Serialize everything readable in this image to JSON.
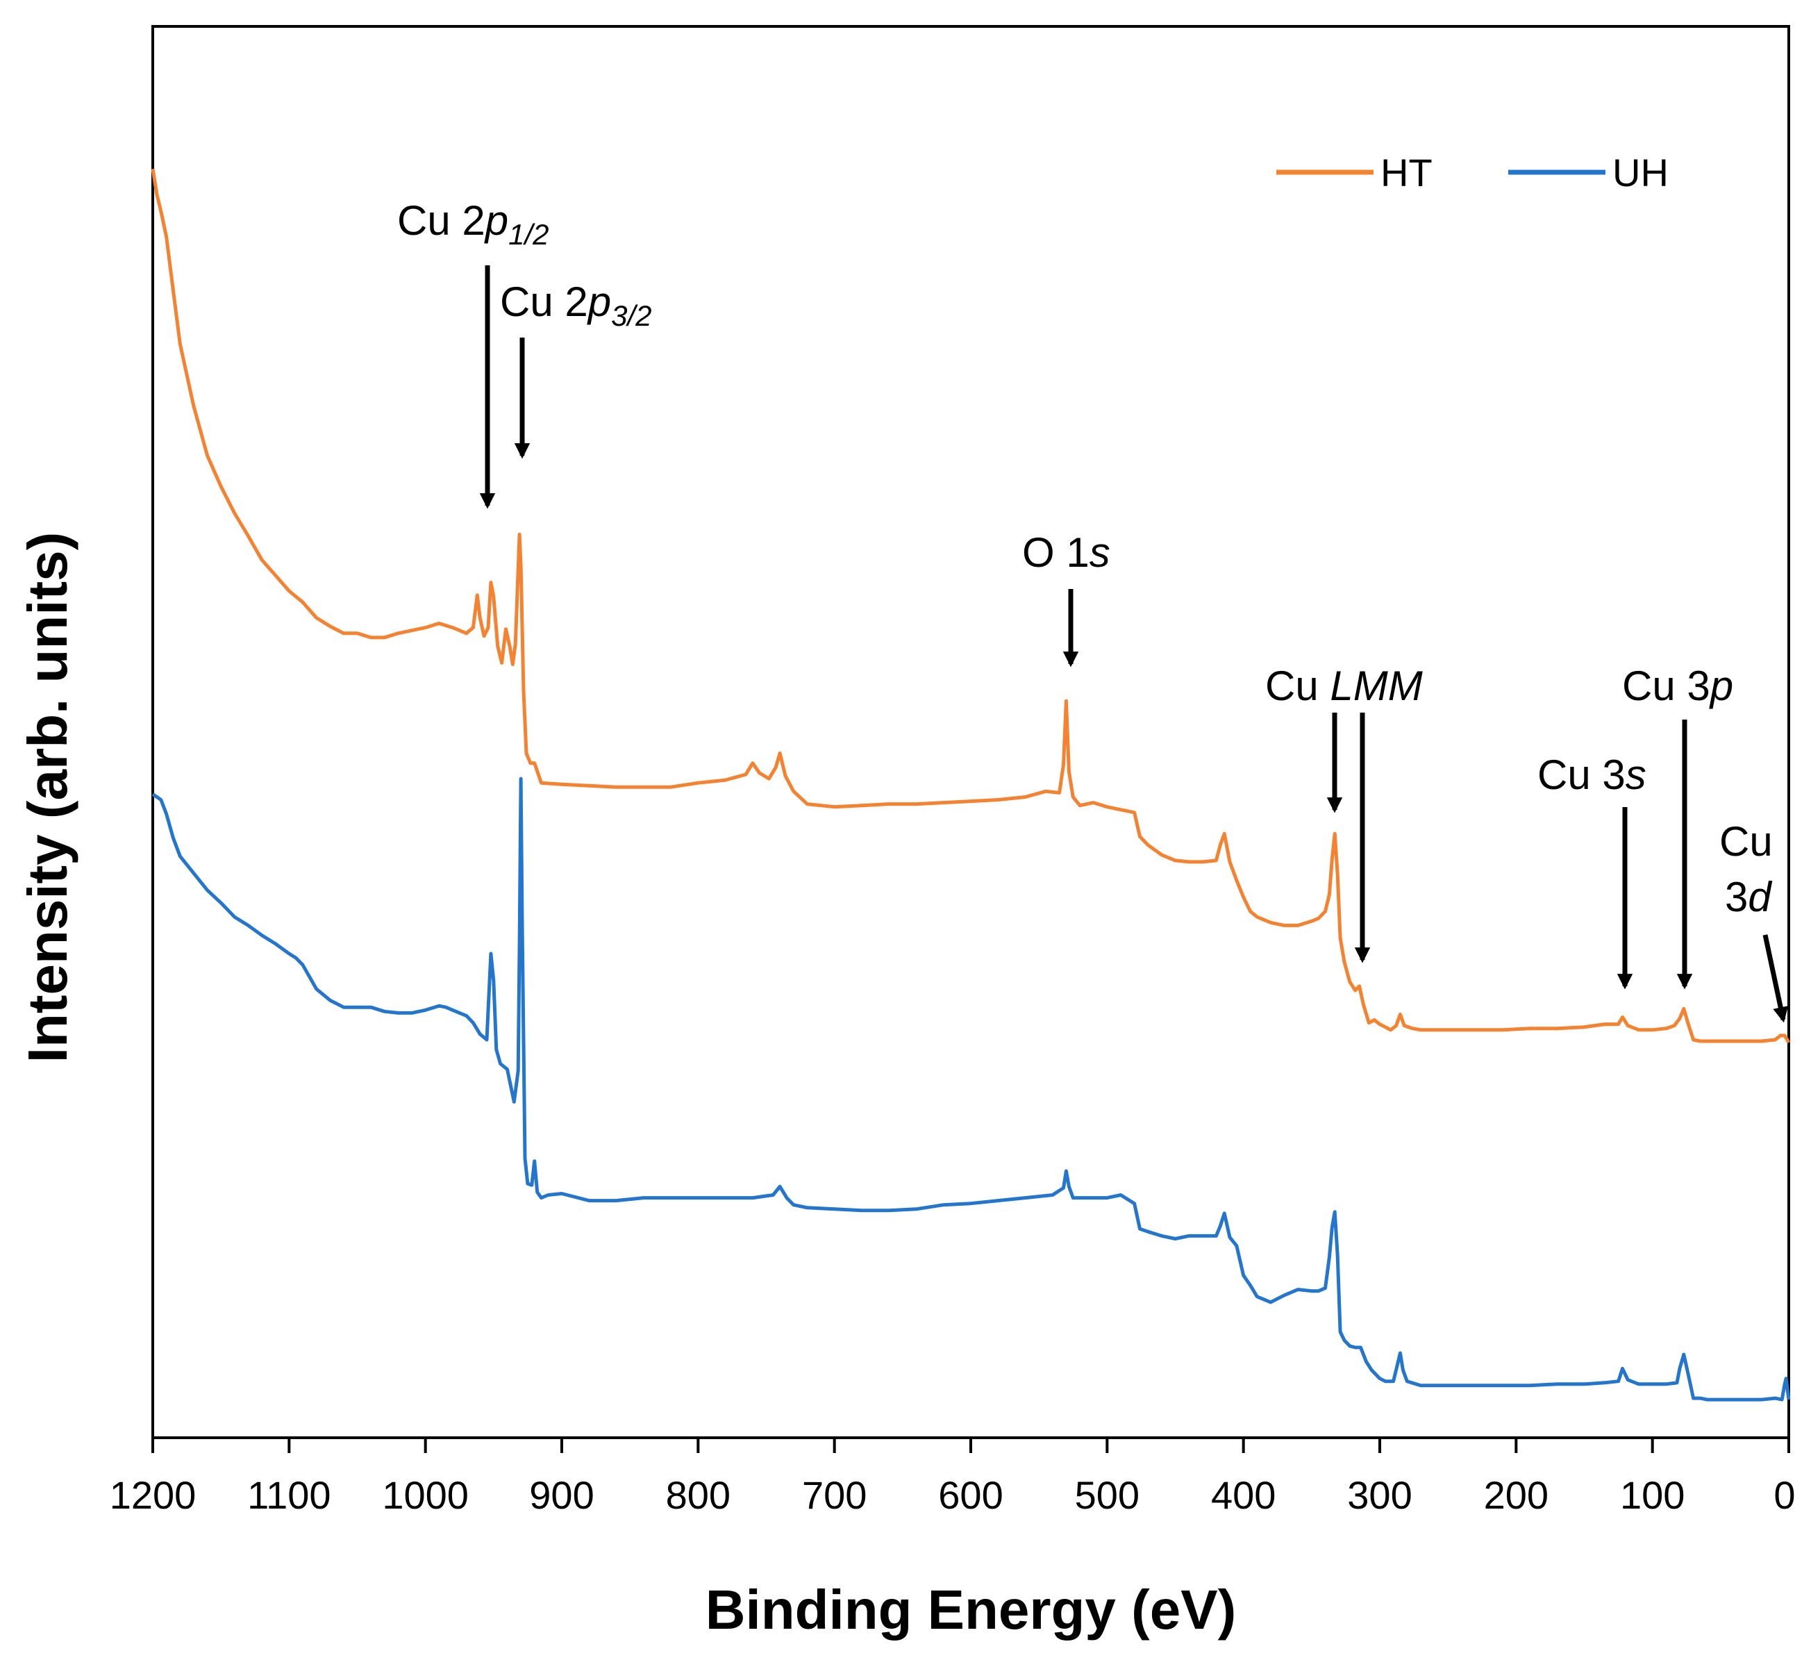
{
  "chart_data": {
    "type": "line",
    "title": "",
    "xlabel": "Binding Energy (eV)",
    "ylabel": "Intensity (arb. units)",
    "xlim": [
      1200,
      0
    ],
    "x_reversed": true,
    "ylim": [
      0,
      100
    ],
    "ytick_labels": false,
    "grid": false,
    "xticks": [
      "1200",
      "1100",
      "1000",
      "900",
      "800",
      "700",
      "600",
      "500",
      "400",
      "300",
      "200",
      "100",
      "0"
    ],
    "legend": {
      "placement": "top-right",
      "entries": [
        "HT",
        "UH"
      ]
    },
    "colors": {
      "HT": "#f58231",
      "UH": "#2375cd"
    },
    "series": [
      {
        "name": "HT",
        "points": [
          [
            1200,
            89.9
          ],
          [
            1197,
            88.1
          ],
          [
            1194,
            86.9
          ],
          [
            1190,
            85.1
          ],
          [
            1185,
            81.3
          ],
          [
            1180,
            77.5
          ],
          [
            1170,
            73.1
          ],
          [
            1160,
            69.6
          ],
          [
            1150,
            67.4
          ],
          [
            1140,
            65.5
          ],
          [
            1130,
            63.9
          ],
          [
            1120,
            62.2
          ],
          [
            1110,
            61.1
          ],
          [
            1100,
            60.0
          ],
          [
            1090,
            59.2
          ],
          [
            1080,
            58.1
          ],
          [
            1070,
            57.5
          ],
          [
            1060,
            57.0
          ],
          [
            1050,
            57.0
          ],
          [
            1040,
            56.7
          ],
          [
            1030,
            56.7
          ],
          [
            1020,
            57.0
          ],
          [
            1010,
            57.2
          ],
          [
            1000,
            57.4
          ],
          [
            990,
            57.7
          ],
          [
            980,
            57.4
          ],
          [
            970,
            57.0
          ],
          [
            965,
            57.4
          ],
          [
            962,
            59.7
          ],
          [
            960,
            58.1
          ],
          [
            957,
            56.8
          ],
          [
            954,
            57.4
          ],
          [
            952,
            60.6
          ],
          [
            950,
            59.6
          ],
          [
            947,
            56.1
          ],
          [
            944,
            54.9
          ],
          [
            941,
            57.3
          ],
          [
            938,
            56.0
          ],
          [
            936,
            54.8
          ],
          [
            934,
            56.2
          ],
          [
            932,
            61.5
          ],
          [
            931,
            64.0
          ],
          [
            930,
            61.8
          ],
          [
            928,
            52.9
          ],
          [
            926,
            48.5
          ],
          [
            923,
            47.8
          ],
          [
            920,
            47.8
          ],
          [
            915,
            46.4
          ],
          [
            900,
            46.3
          ],
          [
            880,
            46.2
          ],
          [
            860,
            46.1
          ],
          [
            840,
            46.1
          ],
          [
            820,
            46.1
          ],
          [
            800,
            46.4
          ],
          [
            780,
            46.6
          ],
          [
            765,
            47.0
          ],
          [
            760,
            47.8
          ],
          [
            755,
            47.1
          ],
          [
            748,
            46.7
          ],
          [
            743,
            47.5
          ],
          [
            740,
            48.5
          ],
          [
            736,
            46.9
          ],
          [
            730,
            45.8
          ],
          [
            720,
            44.9
          ],
          [
            700,
            44.7
          ],
          [
            680,
            44.8
          ],
          [
            660,
            44.9
          ],
          [
            640,
            44.9
          ],
          [
            620,
            45.0
          ],
          [
            600,
            45.1
          ],
          [
            580,
            45.2
          ],
          [
            560,
            45.4
          ],
          [
            545,
            45.8
          ],
          [
            535,
            45.7
          ],
          [
            532,
            47.7
          ],
          [
            530,
            52.2
          ],
          [
            528,
            47.2
          ],
          [
            525,
            45.4
          ],
          [
            520,
            44.8
          ],
          [
            510,
            45.0
          ],
          [
            500,
            44.7
          ],
          [
            490,
            44.5
          ],
          [
            480,
            44.3
          ],
          [
            476,
            42.6
          ],
          [
            470,
            42.0
          ],
          [
            460,
            41.3
          ],
          [
            450,
            40.9
          ],
          [
            440,
            40.8
          ],
          [
            430,
            40.8
          ],
          [
            420,
            40.9
          ],
          [
            417,
            42.0
          ],
          [
            414,
            42.8
          ],
          [
            410,
            40.8
          ],
          [
            405,
            39.5
          ],
          [
            400,
            38.3
          ],
          [
            395,
            37.3
          ],
          [
            390,
            36.9
          ],
          [
            380,
            36.5
          ],
          [
            370,
            36.3
          ],
          [
            360,
            36.3
          ],
          [
            350,
            36.6
          ],
          [
            345,
            36.8
          ],
          [
            340,
            37.3
          ],
          [
            337,
            38.5
          ],
          [
            335,
            41.0
          ],
          [
            333,
            42.8
          ],
          [
            331,
            40.0
          ],
          [
            329,
            35.4
          ],
          [
            326,
            33.7
          ],
          [
            322,
            32.3
          ],
          [
            318,
            31.7
          ],
          [
            315,
            32.0
          ],
          [
            312,
            30.7
          ],
          [
            308,
            29.4
          ],
          [
            304,
            29.6
          ],
          [
            300,
            29.3
          ],
          [
            296,
            29.1
          ],
          [
            292,
            28.9
          ],
          [
            288,
            29.2
          ],
          [
            285,
            30.0
          ],
          [
            282,
            29.2
          ],
          [
            276,
            29.0
          ],
          [
            270,
            28.9
          ],
          [
            250,
            28.9
          ],
          [
            230,
            28.9
          ],
          [
            210,
            28.9
          ],
          [
            190,
            29.0
          ],
          [
            170,
            29.0
          ],
          [
            150,
            29.1
          ],
          [
            135,
            29.3
          ],
          [
            125,
            29.3
          ],
          [
            122,
            29.8
          ],
          [
            118,
            29.2
          ],
          [
            110,
            28.9
          ],
          [
            100,
            28.9
          ],
          [
            90,
            29.0
          ],
          [
            84,
            29.2
          ],
          [
            80,
            29.7
          ],
          [
            77,
            30.4
          ],
          [
            74,
            29.4
          ],
          [
            70,
            28.2
          ],
          [
            65,
            28.1
          ],
          [
            60,
            28.1
          ],
          [
            50,
            28.1
          ],
          [
            40,
            28.1
          ],
          [
            30,
            28.1
          ],
          [
            20,
            28.1
          ],
          [
            10,
            28.2
          ],
          [
            6,
            28.5
          ],
          [
            3,
            28.5
          ],
          [
            0,
            28.0
          ]
        ]
      },
      {
        "name": "UH",
        "points": [
          [
            1200,
            45.6
          ],
          [
            1194,
            45.2
          ],
          [
            1190,
            44.2
          ],
          [
            1185,
            42.5
          ],
          [
            1180,
            41.2
          ],
          [
            1170,
            40.0
          ],
          [
            1160,
            38.8
          ],
          [
            1150,
            37.9
          ],
          [
            1140,
            36.9
          ],
          [
            1130,
            36.3
          ],
          [
            1120,
            35.6
          ],
          [
            1110,
            35.0
          ],
          [
            1100,
            34.3
          ],
          [
            1095,
            34.0
          ],
          [
            1090,
            33.5
          ],
          [
            1080,
            31.8
          ],
          [
            1070,
            31.0
          ],
          [
            1060,
            30.5
          ],
          [
            1050,
            30.5
          ],
          [
            1040,
            30.5
          ],
          [
            1030,
            30.2
          ],
          [
            1020,
            30.1
          ],
          [
            1010,
            30.1
          ],
          [
            1000,
            30.3
          ],
          [
            990,
            30.6
          ],
          [
            985,
            30.5
          ],
          [
            980,
            30.3
          ],
          [
            975,
            30.1
          ],
          [
            970,
            29.9
          ],
          [
            965,
            29.4
          ],
          [
            960,
            28.6
          ],
          [
            955,
            28.2
          ],
          [
            952,
            34.3
          ],
          [
            950,
            32.4
          ],
          [
            948,
            27.5
          ],
          [
            945,
            26.5
          ],
          [
            940,
            26.1
          ],
          [
            935,
            23.8
          ],
          [
            932,
            26.0
          ],
          [
            931,
            35.0
          ],
          [
            930,
            46.7
          ],
          [
            929,
            36.0
          ],
          [
            927,
            19.8
          ],
          [
            925,
            18.0
          ],
          [
            922,
            17.9
          ],
          [
            920,
            19.6
          ],
          [
            918,
            17.4
          ],
          [
            915,
            17.0
          ],
          [
            910,
            17.2
          ],
          [
            900,
            17.3
          ],
          [
            880,
            16.8
          ],
          [
            860,
            16.8
          ],
          [
            840,
            17.0
          ],
          [
            820,
            17.0
          ],
          [
            800,
            17.0
          ],
          [
            780,
            17.0
          ],
          [
            760,
            17.0
          ],
          [
            745,
            17.2
          ],
          [
            740,
            17.8
          ],
          [
            735,
            17.0
          ],
          [
            730,
            16.5
          ],
          [
            720,
            16.3
          ],
          [
            700,
            16.2
          ],
          [
            680,
            16.1
          ],
          [
            660,
            16.1
          ],
          [
            640,
            16.2
          ],
          [
            620,
            16.5
          ],
          [
            600,
            16.6
          ],
          [
            580,
            16.8
          ],
          [
            560,
            17.0
          ],
          [
            540,
            17.2
          ],
          [
            532,
            17.7
          ],
          [
            530,
            18.9
          ],
          [
            528,
            17.8
          ],
          [
            525,
            17.0
          ],
          [
            520,
            17.0
          ],
          [
            510,
            17.0
          ],
          [
            500,
            17.0
          ],
          [
            490,
            17.2
          ],
          [
            480,
            16.6
          ],
          [
            476,
            14.8
          ],
          [
            470,
            14.6
          ],
          [
            460,
            14.3
          ],
          [
            450,
            14.1
          ],
          [
            440,
            14.3
          ],
          [
            430,
            14.3
          ],
          [
            420,
            14.3
          ],
          [
            417,
            15.0
          ],
          [
            414,
            15.9
          ],
          [
            410,
            14.2
          ],
          [
            405,
            13.6
          ],
          [
            400,
            11.5
          ],
          [
            395,
            10.8
          ],
          [
            390,
            10.0
          ],
          [
            380,
            9.6
          ],
          [
            370,
            10.1
          ],
          [
            360,
            10.5
          ],
          [
            350,
            10.4
          ],
          [
            345,
            10.4
          ],
          [
            340,
            10.6
          ],
          [
            337,
            12.8
          ],
          [
            335,
            14.9
          ],
          [
            333,
            16.0
          ],
          [
            331,
            13.0
          ],
          [
            329,
            7.5
          ],
          [
            326,
            6.9
          ],
          [
            322,
            6.5
          ],
          [
            318,
            6.4
          ],
          [
            314,
            6.4
          ],
          [
            310,
            5.4
          ],
          [
            306,
            4.8
          ],
          [
            300,
            4.2
          ],
          [
            296,
            4.0
          ],
          [
            290,
            4.0
          ],
          [
            287,
            5.2
          ],
          [
            285,
            6.0
          ],
          [
            283,
            4.8
          ],
          [
            280,
            4.0
          ],
          [
            270,
            3.7
          ],
          [
            250,
            3.7
          ],
          [
            230,
            3.7
          ],
          [
            210,
            3.7
          ],
          [
            190,
            3.7
          ],
          [
            170,
            3.8
          ],
          [
            150,
            3.8
          ],
          [
            135,
            3.9
          ],
          [
            125,
            4.0
          ],
          [
            122,
            4.9
          ],
          [
            118,
            4.1
          ],
          [
            110,
            3.8
          ],
          [
            100,
            3.8
          ],
          [
            90,
            3.8
          ],
          [
            82,
            3.9
          ],
          [
            80,
            4.9
          ],
          [
            77,
            5.9
          ],
          [
            74,
            4.6
          ],
          [
            70,
            2.8
          ],
          [
            65,
            2.8
          ],
          [
            60,
            2.7
          ],
          [
            50,
            2.7
          ],
          [
            40,
            2.7
          ],
          [
            30,
            2.7
          ],
          [
            20,
            2.7
          ],
          [
            10,
            2.8
          ],
          [
            5,
            2.7
          ],
          [
            3,
            3.8
          ],
          [
            2,
            4.2
          ],
          [
            0,
            2.7
          ]
        ]
      }
    ],
    "annotations": [
      {
        "id": "cu2p12",
        "main": "Cu 2",
        "ital": "p",
        "sub": "1/2",
        "x": 953
      },
      {
        "id": "cu2p32",
        "main": "Cu 2",
        "ital": "p",
        "sub": "3/2",
        "x": 928
      },
      {
        "id": "o1s",
        "main": "O 1",
        "ital": "s",
        "x": 531
      },
      {
        "id": "culmm",
        "main": "Cu ",
        "ital": "LMM",
        "x": [
          335,
          313
        ]
      },
      {
        "id": "cu3s",
        "main": "Cu 3",
        "ital": "s",
        "x": 121
      },
      {
        "id": "cu3p",
        "main": "Cu 3",
        "ital": "p",
        "x": 77
      },
      {
        "id": "cu3d",
        "main": "Cu",
        "line2": "3",
        "ital": "d",
        "x": 2
      }
    ]
  }
}
